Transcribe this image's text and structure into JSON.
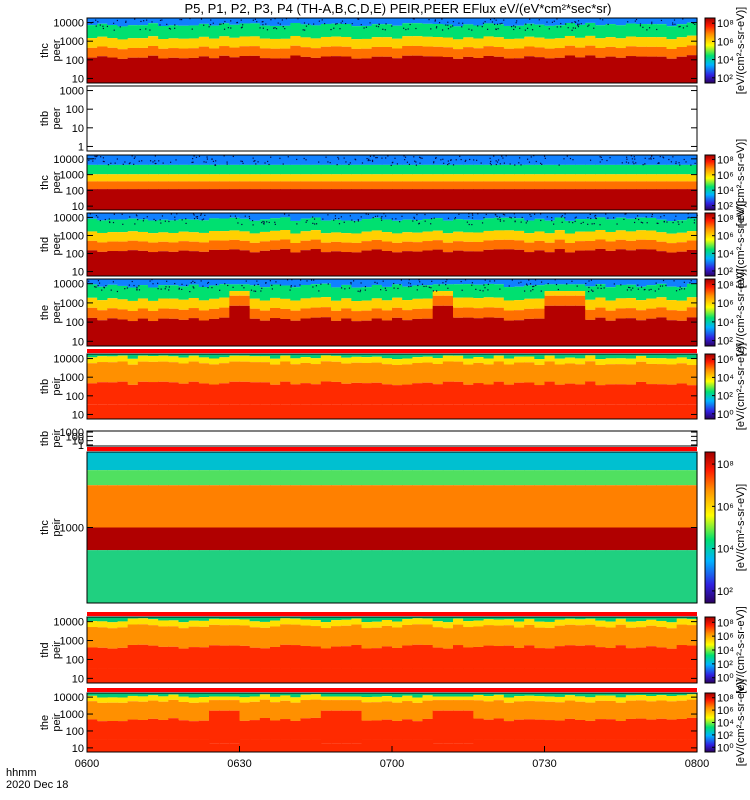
{
  "chart_data": {
    "type": "heatmap",
    "title": "P5, P1, P2, P3, P4 (TH-A,B,C,D,E) PEIR,PEER EFlux eV/(eV*cm²*sec*sr)",
    "x_axis": {
      "ticks": [
        "0600",
        "0630",
        "0700",
        "0730",
        "0800"
      ],
      "tick_minutes": [
        0,
        30,
        60,
        90,
        120
      ],
      "range_minutes": [
        0,
        120
      ],
      "label_lines": [
        "hhmm",
        "2020 Dec 18"
      ]
    },
    "colorbar_label": "[eV/(cm²-s-sr-eV)]",
    "panels": [
      {
        "probe": "thc",
        "species": "peer",
        "yticks": [
          "10",
          "100",
          "1000",
          "10000"
        ],
        "has_data": true,
        "colorbar": true,
        "cb_ticks": [
          "10²",
          "10⁴",
          "10⁶",
          "10⁸"
        ],
        "pattern": "peer_quiet"
      },
      {
        "probe": "thb",
        "species": "peer",
        "yticks": [
          "1",
          "10",
          "100",
          "1000"
        ],
        "has_data": false,
        "colorbar": false,
        "cb_ticks": [],
        "pattern": "empty"
      },
      {
        "probe": "thc",
        "species": "peer",
        "yticks": [
          "10",
          "100",
          "1000",
          "10000"
        ],
        "has_data": true,
        "colorbar": true,
        "cb_ticks": [
          "10²",
          "10⁴",
          "10⁶",
          "10⁸"
        ],
        "pattern": "peer_flat"
      },
      {
        "probe": "thd",
        "species": "peer",
        "yticks": [
          "10",
          "100",
          "1000",
          "10000"
        ],
        "has_data": true,
        "colorbar": true,
        "cb_ticks": [
          "10²",
          "10⁴",
          "10⁶",
          "10⁸"
        ],
        "pattern": "peer_quiet"
      },
      {
        "probe": "the",
        "species": "peer",
        "yticks": [
          "10",
          "100",
          "1000",
          "10000"
        ],
        "has_data": true,
        "colorbar": true,
        "cb_ticks": [
          "10²",
          "10⁴",
          "10⁶",
          "10⁸"
        ],
        "pattern": "peer_active"
      },
      {
        "probe": "thb",
        "species": "peir",
        "yticks": [
          "10",
          "100",
          "1000",
          "10000"
        ],
        "has_data": true,
        "colorbar": true,
        "cb_ticks": [
          "10⁰",
          "10²",
          "10⁴",
          "10⁶"
        ],
        "pattern": "peir"
      },
      {
        "probe": "thb",
        "species": "peir",
        "yticks": [
          "1",
          "10",
          "100",
          "1000"
        ],
        "has_data": false,
        "colorbar": false,
        "cb_ticks": [],
        "pattern": "empty"
      },
      {
        "probe": "thc",
        "species": "peir",
        "yticks": [
          "1000"
        ],
        "has_data": true,
        "colorbar": true,
        "cb_ticks": [
          "10²",
          "10⁴",
          "10⁶",
          "10⁸"
        ],
        "pattern": "peir_flat"
      },
      {
        "probe": "thd",
        "species": "peir",
        "yticks": [
          "10",
          "100",
          "1000",
          "10000"
        ],
        "has_data": true,
        "colorbar": true,
        "cb_ticks": [
          "10⁰",
          "10²",
          "10⁴",
          "10⁶",
          "10⁸"
        ],
        "pattern": "peir"
      },
      {
        "probe": "the",
        "species": "peir",
        "yticks": [
          "10",
          "100",
          "1000",
          "10000"
        ],
        "has_data": true,
        "colorbar": true,
        "cb_ticks": [
          "10⁰",
          "10²",
          "10⁴",
          "10⁶",
          "10⁸"
        ],
        "pattern": "peir_active"
      }
    ]
  }
}
